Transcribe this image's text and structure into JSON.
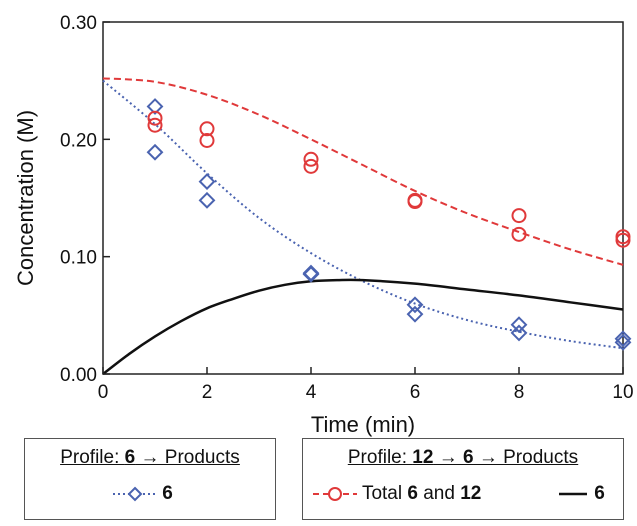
{
  "chart_data": {
    "type": "scatter",
    "xlabel": "Time (min)",
    "ylabel": "Concentration (M)",
    "xlim": [
      0,
      10
    ],
    "ylim": [
      0,
      0.3
    ],
    "x_ticks": [
      "0",
      "2",
      "4",
      "6",
      "8",
      "10"
    ],
    "y_ticks": [
      "0.00",
      "0.10",
      "0.20",
      "0.30"
    ],
    "grid": false,
    "series": [
      {
        "name": "6",
        "marker": "diamond",
        "color": "#4a63b0",
        "points": [
          [
            1,
            0.228
          ],
          [
            1,
            0.189
          ],
          [
            2,
            0.164
          ],
          [
            2,
            0.148
          ],
          [
            4,
            0.086
          ],
          [
            4,
            0.085
          ],
          [
            6,
            0.059
          ],
          [
            6,
            0.051
          ],
          [
            8,
            0.042
          ],
          [
            8,
            0.035
          ],
          [
            10,
            0.03
          ],
          [
            10,
            0.027
          ]
        ],
        "fit_line": "dotted",
        "fit": [
          [
            0,
            0.25
          ],
          [
            1,
            0.213
          ],
          [
            2,
            0.171
          ],
          [
            3,
            0.133
          ],
          [
            4,
            0.103
          ],
          [
            5,
            0.079
          ],
          [
            6,
            0.06
          ],
          [
            7,
            0.046
          ],
          [
            8,
            0.036
          ],
          [
            9,
            0.028
          ],
          [
            10,
            0.022
          ]
        ]
      },
      {
        "name": "Total 6 and 12",
        "marker": "circle",
        "color": "#e0393a",
        "points": [
          [
            1,
            0.218
          ],
          [
            1,
            0.212
          ],
          [
            2,
            0.209
          ],
          [
            2,
            0.199
          ],
          [
            4,
            0.183
          ],
          [
            4,
            0.177
          ],
          [
            6,
            0.148
          ],
          [
            6,
            0.147
          ],
          [
            8,
            0.135
          ],
          [
            8,
            0.119
          ],
          [
            10,
            0.117
          ],
          [
            10,
            0.114
          ]
        ],
        "fit_line": "dashed",
        "fit": [
          [
            0,
            0.252
          ],
          [
            1,
            0.249
          ],
          [
            2,
            0.238
          ],
          [
            3,
            0.221
          ],
          [
            4,
            0.2
          ],
          [
            5,
            0.178
          ],
          [
            6,
            0.156
          ],
          [
            7,
            0.137
          ],
          [
            8,
            0.121
          ],
          [
            9,
            0.106
          ],
          [
            10,
            0.093
          ]
        ]
      },
      {
        "name": "6",
        "marker": "none",
        "color": "#111111",
        "fit_line": "solid",
        "fit": [
          [
            0,
            0.0
          ],
          [
            0.5,
            0.017
          ],
          [
            1,
            0.032
          ],
          [
            1.5,
            0.045
          ],
          [
            2,
            0.056
          ],
          [
            2.5,
            0.064
          ],
          [
            3,
            0.071
          ],
          [
            3.5,
            0.076
          ],
          [
            4,
            0.079
          ],
          [
            4.5,
            0.08
          ],
          [
            5,
            0.08
          ],
          [
            6,
            0.077
          ],
          [
            7,
            0.072
          ],
          [
            8,
            0.067
          ],
          [
            9,
            0.061
          ],
          [
            10,
            0.055
          ]
        ]
      }
    ],
    "legends": [
      {
        "title_pre": "Profile: ",
        "title_b1": "6",
        "title_arrow1": " → Products",
        "entries": [
          {
            "bold": "6",
            "text": ""
          }
        ]
      },
      {
        "title_pre": "Profile: ",
        "title_b1": "12",
        "title_arrow1": " → ",
        "title_b2": "6",
        "title_arrow2": " → Products",
        "entries": [
          {
            "text_pre": "Total ",
            "b1": "6",
            "text_mid": " and ",
            "b2": "12"
          },
          {
            "bold": "6"
          }
        ]
      }
    ]
  }
}
